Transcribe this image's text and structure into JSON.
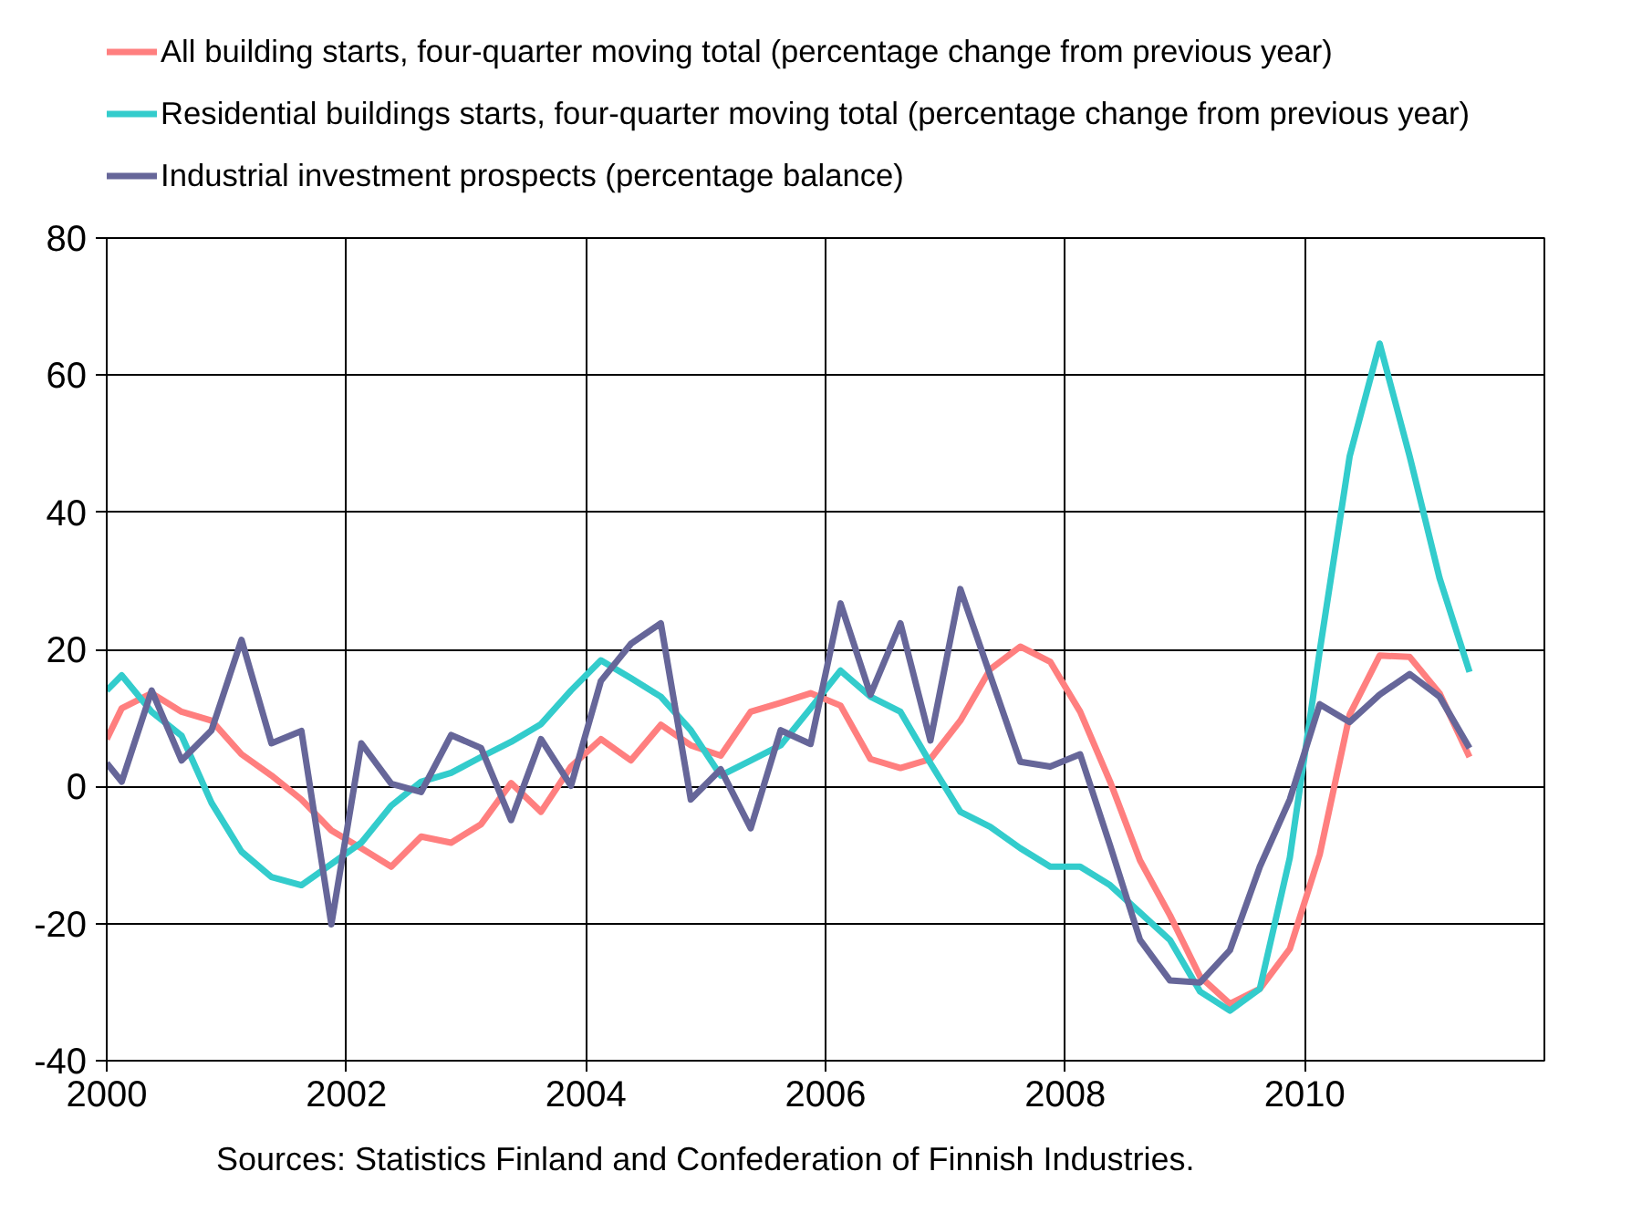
{
  "chart_data": {
    "type": "line",
    "x": [
      2000.0,
      2000.125,
      2000.375,
      2000.625,
      2000.875,
      2001.125,
      2001.375,
      2001.625,
      2001.875,
      2002.125,
      2002.375,
      2002.625,
      2002.875,
      2003.125,
      2003.375,
      2003.625,
      2003.875,
      2004.125,
      2004.375,
      2004.625,
      2004.875,
      2005.125,
      2005.375,
      2005.625,
      2005.875,
      2006.125,
      2006.375,
      2006.625,
      2006.875,
      2007.125,
      2007.375,
      2007.625,
      2007.875,
      2008.125,
      2008.375,
      2008.625,
      2008.875,
      2009.125,
      2009.375,
      2009.625,
      2009.875,
      2010.125,
      2010.375,
      2010.625,
      2010.875,
      2011.125,
      2011.375
    ],
    "series": [
      {
        "name": "All building starts, four-quarter moving total (percentage change from previous year)",
        "color": "#ff7f7f",
        "values": [
          6.9,
          11.4,
          13.6,
          10.9,
          9.6,
          4.7,
          1.6,
          -1.9,
          -6.4,
          -9.0,
          -11.7,
          -7.3,
          -8.2,
          -5.5,
          0.5,
          -3.7,
          2.9,
          6.9,
          3.8,
          9.0,
          6.0,
          4.5,
          10.9,
          12.2,
          13.6,
          11.8,
          4.0,
          2.7,
          4.0,
          9.6,
          17.1,
          20.4,
          18.2,
          10.9,
          0.7,
          -10.8,
          -18.8,
          -27.7,
          -31.7,
          -29.5,
          -23.7,
          -9.9,
          10.5,
          19.1,
          18.9,
          13.6,
          4.3
        ]
      },
      {
        "name": "Residential buildings starts, four-quarter moving total (percentage change from previous year)",
        "color": "#33cccc",
        "values": [
          14.0,
          16.2,
          10.9,
          7.4,
          -2.4,
          -9.5,
          -13.2,
          -14.4,
          -11.3,
          -8.2,
          -2.8,
          0.7,
          2.0,
          4.3,
          6.5,
          9.1,
          14.0,
          18.4,
          15.8,
          13.1,
          8.2,
          1.6,
          3.8,
          6.0,
          11.4,
          16.9,
          13.1,
          10.9,
          3.4,
          -3.7,
          -5.9,
          -9.0,
          -11.7,
          -11.7,
          -14.4,
          -18.4,
          -22.4,
          -29.9,
          -32.7,
          -29.5,
          -10.4,
          19.8,
          48.2,
          64.6,
          48.2,
          30.4,
          16.7
        ]
      },
      {
        "name": "Industrial investment prospects (percentage balance)",
        "color": "#666699",
        "values": [
          3.4,
          0.7,
          14.0,
          3.8,
          8.2,
          21.4,
          6.3,
          8.1,
          -20.1,
          6.3,
          0.4,
          -0.8,
          7.5,
          5.6,
          -4.9,
          6.9,
          0.1,
          15.4,
          20.8,
          23.8,
          -1.9,
          2.5,
          -6.1,
          8.2,
          6.2,
          26.7,
          13.4,
          23.8,
          6.7,
          28.8,
          16.2,
          3.6,
          2.9,
          4.7,
          -8.6,
          -22.4,
          -28.3,
          -28.6,
          -23.9,
          -11.7,
          -1.9,
          12.0,
          9.4,
          13.4,
          16.4,
          13.1,
          5.6
        ]
      }
    ],
    "xlim": [
      2000,
      2012
    ],
    "xticks": [
      2000,
      2002,
      2004,
      2006,
      2008,
      2010
    ],
    "ylim": [
      -40,
      80
    ],
    "yticks": [
      -40,
      -20,
      0,
      20,
      40,
      60,
      80
    ],
    "grid": true,
    "legend": "top left",
    "marker": "none",
    "line_style": "solid",
    "annotations": [
      "Sources: Statistics Finland and Confederation of Finnish Industries."
    ]
  }
}
